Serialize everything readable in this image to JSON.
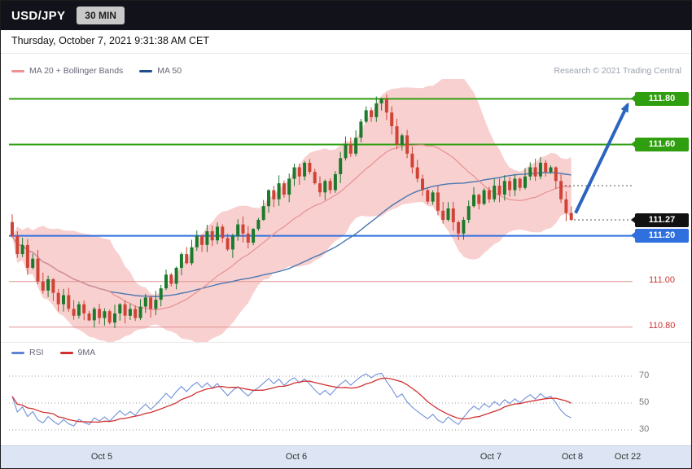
{
  "header": {
    "symbol": "USD/JPY",
    "timeframe": "30 MIN"
  },
  "date_line": "Thursday, October 7, 2021 9:31:38 AM CET",
  "legend": {
    "ma20": "MA 20 + Bollinger Bands",
    "ma50": "MA 50",
    "credit": "Research © 2021 Trading Central"
  },
  "rsi_legend": {
    "rsi": "RSI",
    "ma9": "9MA"
  },
  "chart_data": {
    "type": "candlestick",
    "symbol": "USD/JPY",
    "interval": "30 MIN",
    "price_panel": {
      "ylim": [
        110.76,
        111.83
      ],
      "first_open": 111.26,
      "closes": [
        111.2,
        111.12,
        111.16,
        111.06,
        111.1,
        111.0,
        110.96,
        111.01,
        110.95,
        110.9,
        110.94,
        110.88,
        110.85,
        110.9,
        110.86,
        110.83,
        110.88,
        110.84,
        110.87,
        110.82,
        110.86,
        110.9,
        110.85,
        110.88,
        110.84,
        110.89,
        110.93,
        110.88,
        110.92,
        110.97,
        111.03,
        110.99,
        111.06,
        111.12,
        111.08,
        111.15,
        111.2,
        111.16,
        111.22,
        111.18,
        111.24,
        111.19,
        111.14,
        111.2,
        111.25,
        111.21,
        111.17,
        111.23,
        111.27,
        111.33,
        111.4,
        111.36,
        111.43,
        111.38,
        111.45,
        111.5,
        111.46,
        111.52,
        111.48,
        111.43,
        111.39,
        111.44,
        111.4,
        111.47,
        111.54,
        111.6,
        111.56,
        111.63,
        111.7,
        111.75,
        111.72,
        111.78,
        111.8,
        111.74,
        111.68,
        111.6,
        111.64,
        111.56,
        111.5,
        111.45,
        111.4,
        111.35,
        111.39,
        111.31,
        111.27,
        111.32,
        111.26,
        111.21,
        111.27,
        111.33,
        111.38,
        111.34,
        111.4,
        111.36,
        111.42,
        111.38,
        111.44,
        111.4,
        111.45,
        111.41,
        111.46,
        111.5,
        111.46,
        111.52,
        111.48,
        111.5,
        111.44,
        111.36,
        111.3,
        111.27
      ],
      "levels": [
        {
          "label": "111.80",
          "price": 111.8,
          "kind": "resistance"
        },
        {
          "label": "111.60",
          "price": 111.6,
          "kind": "resistance"
        },
        {
          "label": "111.27",
          "price": 111.27,
          "kind": "last"
        },
        {
          "label": "111.20",
          "price": 111.2,
          "kind": "support"
        },
        {
          "label": "111.00",
          "price": 111.0,
          "kind": "pivot"
        },
        {
          "label": "110.80",
          "price": 110.8,
          "kind": "pivot"
        }
      ],
      "dotted": [
        {
          "price": 111.42
        },
        {
          "price": 111.27
        }
      ],
      "arrow": {
        "from_price": 111.3,
        "to_price": 111.79
      },
      "overlays": {
        "bollinger_window": 20,
        "bollinger_mult": 2,
        "ma50_window": 50
      },
      "colors": {
        "resistance": "#2f9e0f",
        "support": "#2f6fde",
        "last_bg": "#111111",
        "pivot": "#cc3333",
        "pivot_line": "#e09090",
        "candle_up": "#1b7a2c",
        "candle_down": "#cf4436",
        "bollinger_fill": "#f4aaaa",
        "ma20": "#e88f8f",
        "ma50": "#4a78b0",
        "arrow": "#2a65c0"
      }
    },
    "rsi_panel": {
      "rsi_period": 14,
      "ma_period": 9,
      "grid": [
        70,
        50,
        30
      ],
      "ylim": [
        22,
        82
      ],
      "colors": {
        "rsi": "#7191d9",
        "ma": "#d23030"
      }
    },
    "x_axis": {
      "labels": [
        "Oct 5",
        "Oct 6",
        "Oct 7",
        "Oct 8",
        "Oct 22"
      ]
    }
  }
}
